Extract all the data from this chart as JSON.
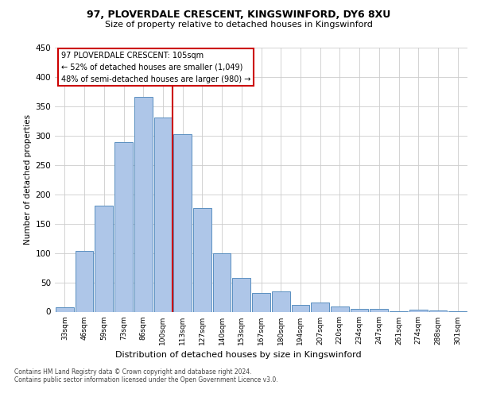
{
  "title1": "97, PLOVERDALE CRESCENT, KINGSWINFORD, DY6 8XU",
  "title2": "Size of property relative to detached houses in Kingswinford",
  "xlabel": "Distribution of detached houses by size in Kingswinford",
  "ylabel": "Number of detached properties",
  "categories": [
    "33sqm",
    "46sqm",
    "59sqm",
    "73sqm",
    "86sqm",
    "100sqm",
    "113sqm",
    "127sqm",
    "140sqm",
    "153sqm",
    "167sqm",
    "180sqm",
    "194sqm",
    "207sqm",
    "220sqm",
    "234sqm",
    "247sqm",
    "261sqm",
    "274sqm",
    "288sqm",
    "301sqm"
  ],
  "values": [
    8,
    103,
    181,
    289,
    366,
    331,
    303,
    176,
    100,
    58,
    32,
    35,
    12,
    15,
    9,
    5,
    5,
    1,
    4,
    2,
    1
  ],
  "bar_color": "#aec6e8",
  "bar_edge_color": "#5a8fc0",
  "vline_color": "#cc0000",
  "vline_pos": 5.5,
  "annotation_line1": "97 PLOVERDALE CRESCENT: 105sqm",
  "annotation_line2": "← 52% of detached houses are smaller (1,049)",
  "annotation_line3": "48% of semi-detached houses are larger (980) →",
  "ann_box_facecolor": "#ffffff",
  "ann_box_edgecolor": "#cc0000",
  "footer1": "Contains HM Land Registry data © Crown copyright and database right 2024.",
  "footer2": "Contains public sector information licensed under the Open Government Licence v3.0.",
  "background_color": "#ffffff",
  "grid_color": "#cccccc",
  "ylim": [
    0,
    450
  ],
  "yticks": [
    0,
    50,
    100,
    150,
    200,
    250,
    300,
    350,
    400,
    450
  ]
}
